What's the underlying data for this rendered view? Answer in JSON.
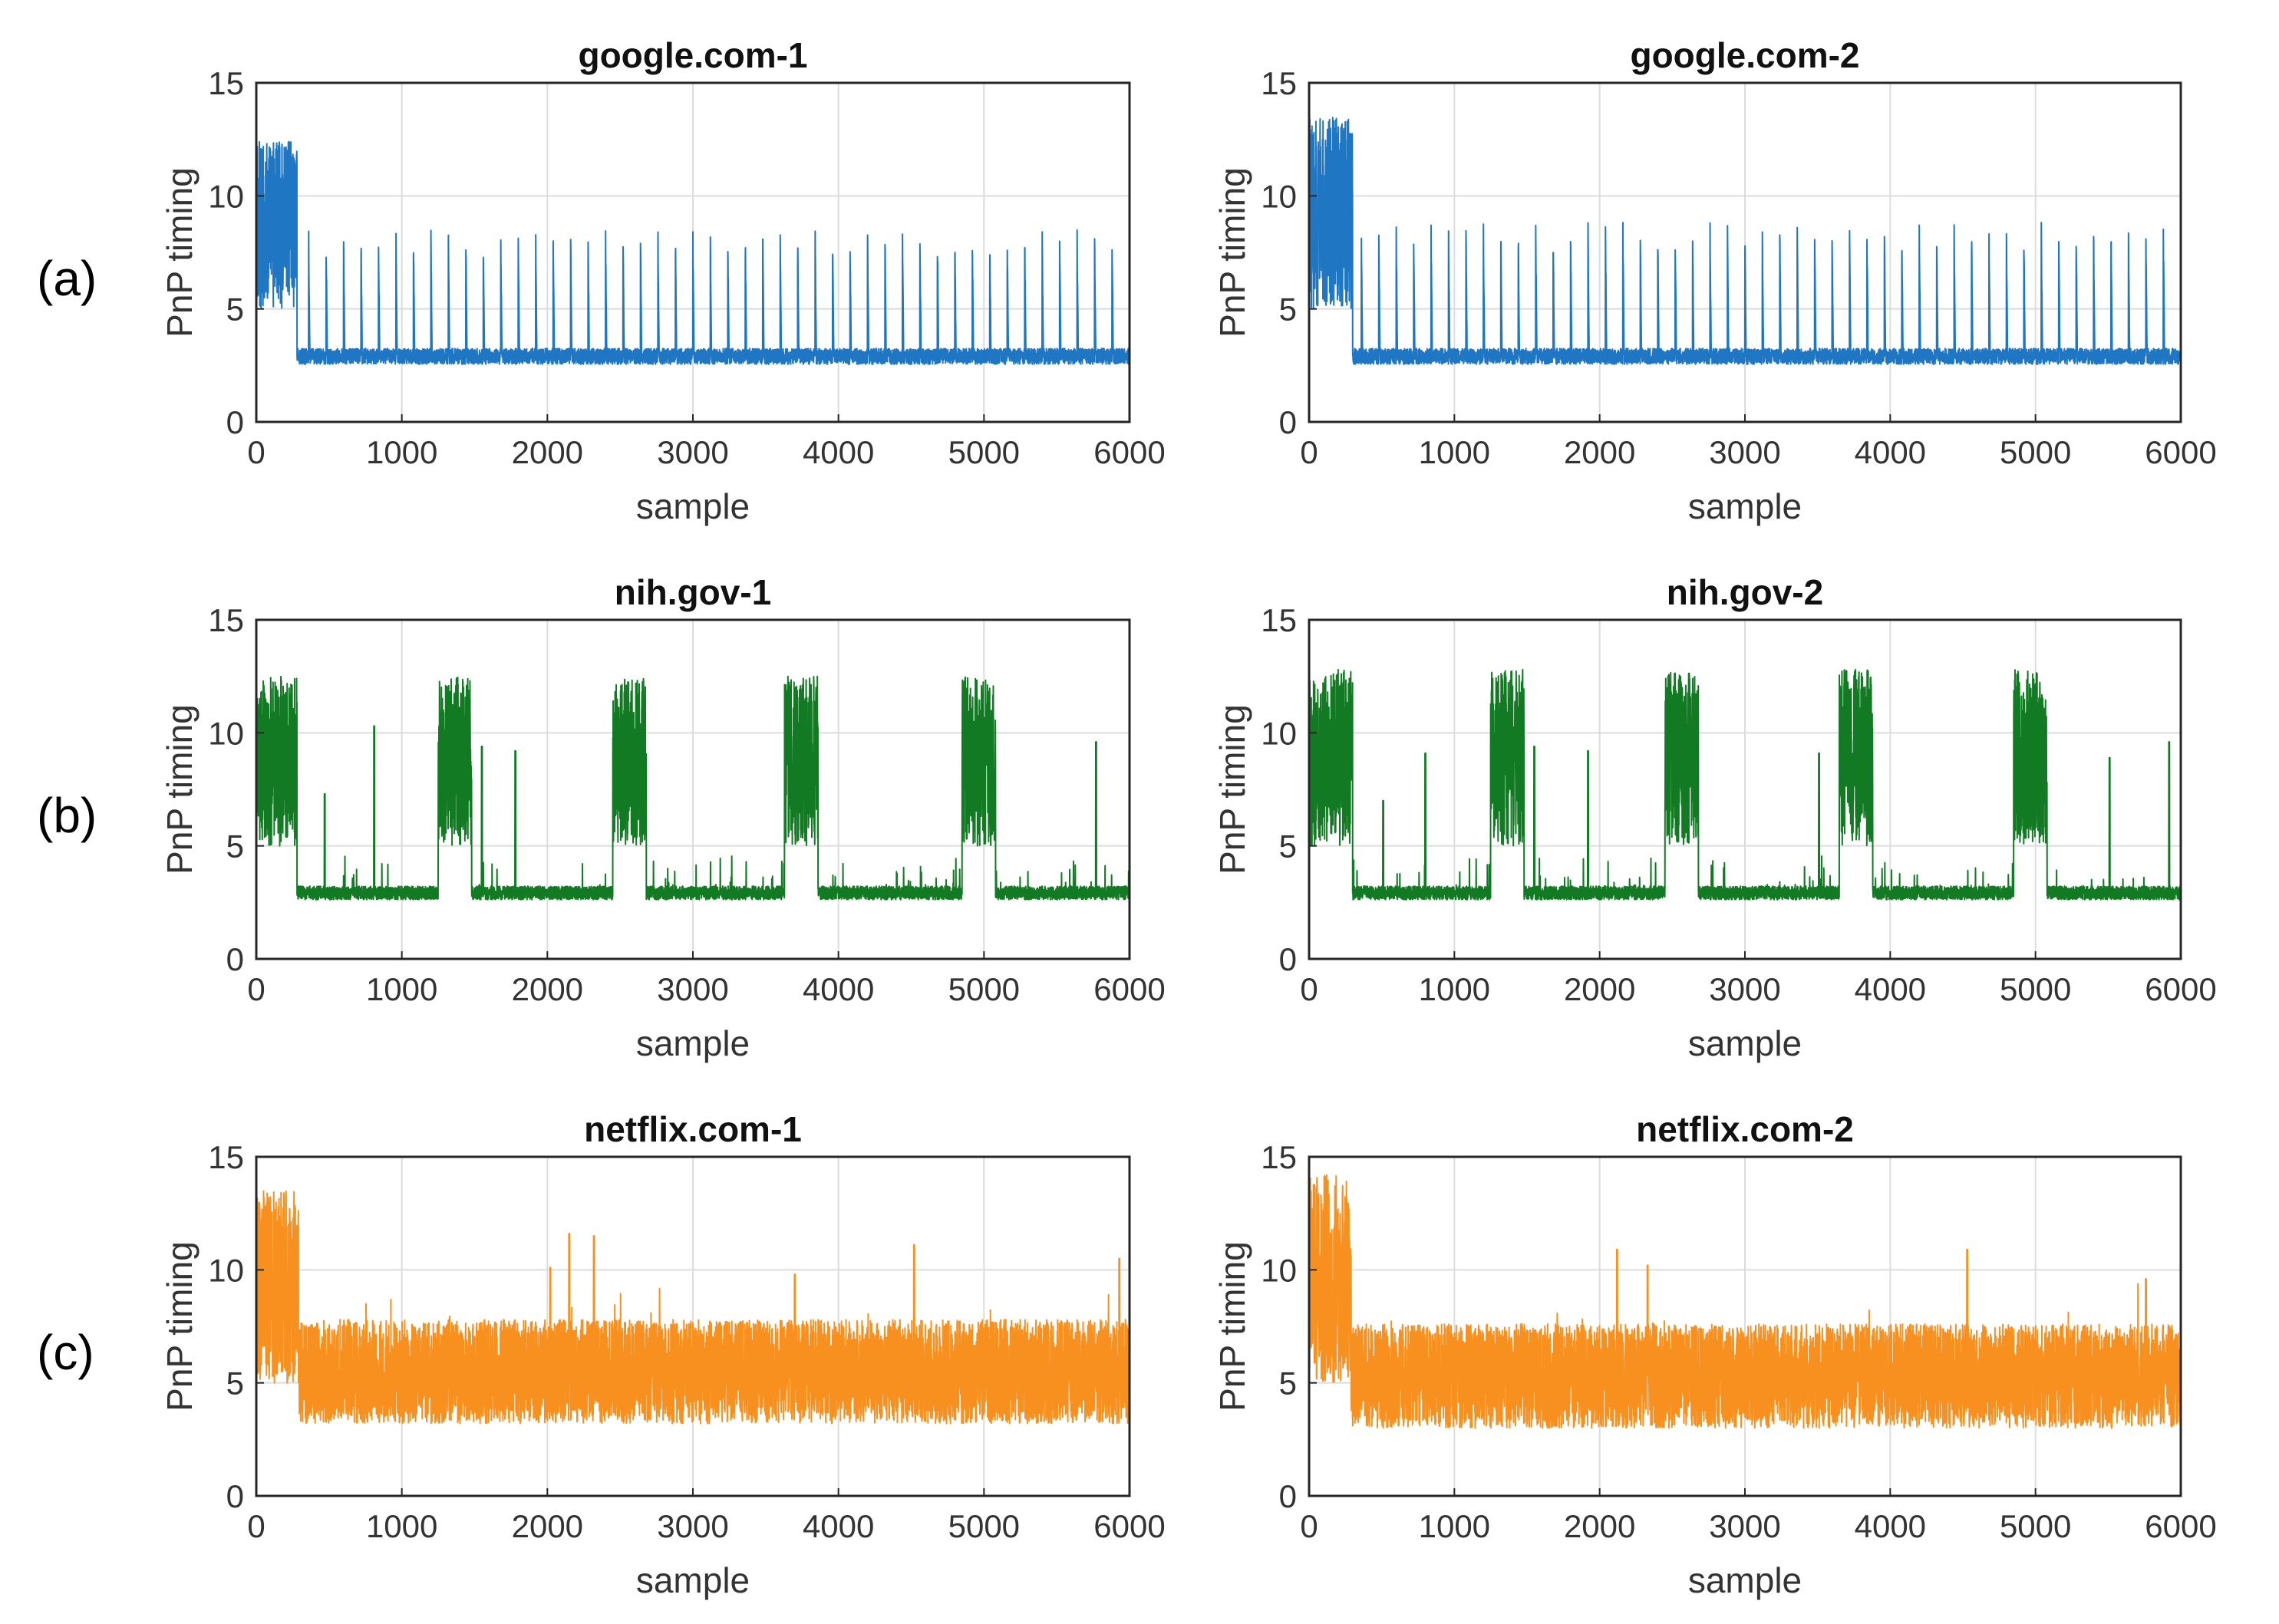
{
  "row_labels": [
    "(a)",
    "(b)",
    "(c)"
  ],
  "colors": {
    "blue": "#1f77c4",
    "green": "#137a24",
    "orange": "#f7901e"
  },
  "chart_data": [
    {
      "type": "line",
      "title": "google.com-1",
      "xlabel": "sample",
      "ylabel": "PnP timing",
      "xlim": [
        0,
        6000
      ],
      "ylim": [
        0,
        15
      ],
      "xticks": [
        0,
        1000,
        2000,
        3000,
        4000,
        5000,
        6000
      ],
      "yticks": [
        0,
        5,
        10,
        15
      ],
      "grid": true,
      "color": "#1f77c4",
      "row": 0,
      "series": [
        {
          "profile": "periodic",
          "x": [
            0,
            6000
          ],
          "initial_burst": {
            "x_end": 280,
            "low": 5,
            "high": 12.5
          },
          "baseline": 2.9,
          "spike_period": 120,
          "spike_height": 8
        }
      ]
    },
    {
      "type": "line",
      "title": "google.com-2",
      "xlabel": "sample",
      "ylabel": "PnP timing",
      "xlim": [
        0,
        6000
      ],
      "ylim": [
        0,
        15
      ],
      "xticks": [
        0,
        1000,
        2000,
        3000,
        4000,
        5000,
        6000
      ],
      "yticks": [
        0,
        5,
        10,
        15
      ],
      "grid": true,
      "color": "#1f77c4",
      "row": 0,
      "series": [
        {
          "profile": "periodic",
          "x": [
            0,
            6000
          ],
          "initial_burst": {
            "x_end": 300,
            "low": 5,
            "high": 13.5
          },
          "baseline": 2.9,
          "spike_period": 120,
          "spike_height": 8.3
        }
      ]
    },
    {
      "type": "line",
      "title": "nih.gov-1",
      "xlabel": "sample",
      "ylabel": "PnP timing",
      "xlim": [
        0,
        6000
      ],
      "ylim": [
        0,
        15
      ],
      "xticks": [
        0,
        1000,
        2000,
        3000,
        4000,
        5000,
        6000
      ],
      "yticks": [
        0,
        5,
        10,
        15
      ],
      "grid": true,
      "color": "#137a24",
      "row": 1,
      "series": [
        {
          "profile": "bursts",
          "baseline": 2.8,
          "burst_low": 5,
          "burst_high": 12.5,
          "bursts": [
            [
              0,
              280
            ],
            [
              1250,
              1480
            ],
            [
              2450,
              2680
            ],
            [
              3630,
              3860
            ],
            [
              4850,
              5080
            ]
          ],
          "spikes": [
            [
              470,
              7.3
            ],
            [
              810,
              10.3
            ],
            [
              1550,
              9.4
            ],
            [
              1780,
              9.2
            ],
            [
              5770,
              9.6
            ]
          ]
        }
      ]
    },
    {
      "type": "line",
      "title": "nih.gov-2",
      "xlabel": "sample",
      "ylabel": "PnP timing",
      "xlim": [
        0,
        6000
      ],
      "ylim": [
        0,
        15
      ],
      "xticks": [
        0,
        1000,
        2000,
        3000,
        4000,
        5000,
        6000
      ],
      "yticks": [
        0,
        5,
        10,
        15
      ],
      "grid": true,
      "color": "#137a24",
      "row": 1,
      "series": [
        {
          "profile": "bursts",
          "baseline": 2.8,
          "burst_low": 5,
          "burst_high": 12.8,
          "bursts": [
            [
              0,
              300
            ],
            [
              1250,
              1480
            ],
            [
              2450,
              2680
            ],
            [
              3650,
              3880
            ],
            [
              4850,
              5080
            ]
          ],
          "spikes": [
            [
              510,
              7.0
            ],
            [
              800,
              9.1
            ],
            [
              1550,
              9.4
            ],
            [
              1920,
              9.2
            ],
            [
              3510,
              9.1
            ],
            [
              5510,
              8.9
            ],
            [
              5920,
              9.6
            ]
          ]
        }
      ]
    },
    {
      "type": "line",
      "title": "netflix.com-1",
      "xlabel": "sample",
      "ylabel": "PnP timing",
      "xlim": [
        0,
        6000
      ],
      "ylim": [
        0,
        15
      ],
      "xticks": [
        0,
        1000,
        2000,
        3000,
        4000,
        5000,
        6000
      ],
      "yticks": [
        0,
        5,
        10,
        15
      ],
      "grid": true,
      "color": "#f7901e",
      "row": 2,
      "series": [
        {
          "profile": "noise",
          "initial_burst": {
            "x_end": 290,
            "low": 5,
            "high": 13.5
          },
          "low": 3.2,
          "high": 7.8,
          "spikes": [
            [
              2020,
              10.1
            ],
            [
              2150,
              11.6
            ],
            [
              2320,
              11.5
            ],
            [
              3700,
              9.8
            ],
            [
              4520,
              11.1
            ],
            [
              5930,
              10.5
            ]
          ]
        }
      ]
    },
    {
      "type": "line",
      "title": "netflix.com-2",
      "xlabel": "sample",
      "ylabel": "PnP timing",
      "xlim": [
        0,
        6000
      ],
      "ylim": [
        0,
        15
      ],
      "xticks": [
        0,
        1000,
        2000,
        3000,
        4000,
        5000,
        6000
      ],
      "yticks": [
        0,
        5,
        10,
        15
      ],
      "grid": true,
      "color": "#f7901e",
      "row": 2,
      "series": [
        {
          "profile": "noise",
          "initial_burst": {
            "x_end": 290,
            "low": 5,
            "high": 14.2
          },
          "low": 3.0,
          "high": 7.6,
          "spikes": [
            [
              2120,
              10.9
            ],
            [
              2330,
              10.2
            ],
            [
              4530,
              10.9
            ],
            [
              5760,
              9.6
            ]
          ]
        }
      ]
    }
  ]
}
